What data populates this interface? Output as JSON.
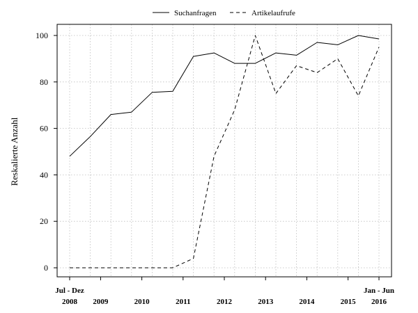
{
  "chart_data": {
    "type": "line",
    "title": "",
    "xlabel": "",
    "ylabel": "Reskalierte Anzahl",
    "ylim": [
      0,
      100
    ],
    "yticks": [
      0,
      20,
      40,
      60,
      80,
      100
    ],
    "grid": true,
    "legend_position": "top",
    "x": [
      0,
      1,
      2,
      3,
      4,
      5,
      6,
      7,
      8,
      9,
      10,
      11,
      12,
      13,
      14,
      15
    ],
    "xticks": [
      {
        "x": 0,
        "line1": "Jul - Dez",
        "line2": "2008"
      },
      {
        "x": 1.5,
        "line1": "",
        "line2": "2009"
      },
      {
        "x": 3.5,
        "line1": "",
        "line2": "2010"
      },
      {
        "x": 5.5,
        "line1": "",
        "line2": "2011"
      },
      {
        "x": 7.5,
        "line1": "",
        "line2": "2012"
      },
      {
        "x": 9.5,
        "line1": "",
        "line2": "2013"
      },
      {
        "x": 11.5,
        "line1": "",
        "line2": "2014"
      },
      {
        "x": 13.5,
        "line1": "",
        "line2": "2015"
      },
      {
        "x": 15,
        "line1": "Jan - Jun",
        "line2": "2016"
      }
    ],
    "series": [
      {
        "name": "Suchanfragen",
        "style": "solid",
        "values": [
          48,
          56.5,
          66,
          67,
          75.5,
          76,
          91,
          92.5,
          88,
          88,
          92.5,
          91.5,
          97,
          96,
          100,
          98.5
        ]
      },
      {
        "name": "Artikelaufrufe",
        "style": "dashed",
        "values": [
          0,
          0,
          0,
          0,
          0,
          0,
          4,
          48,
          68,
          100,
          75,
          87,
          84,
          90,
          74,
          95
        ]
      }
    ]
  }
}
